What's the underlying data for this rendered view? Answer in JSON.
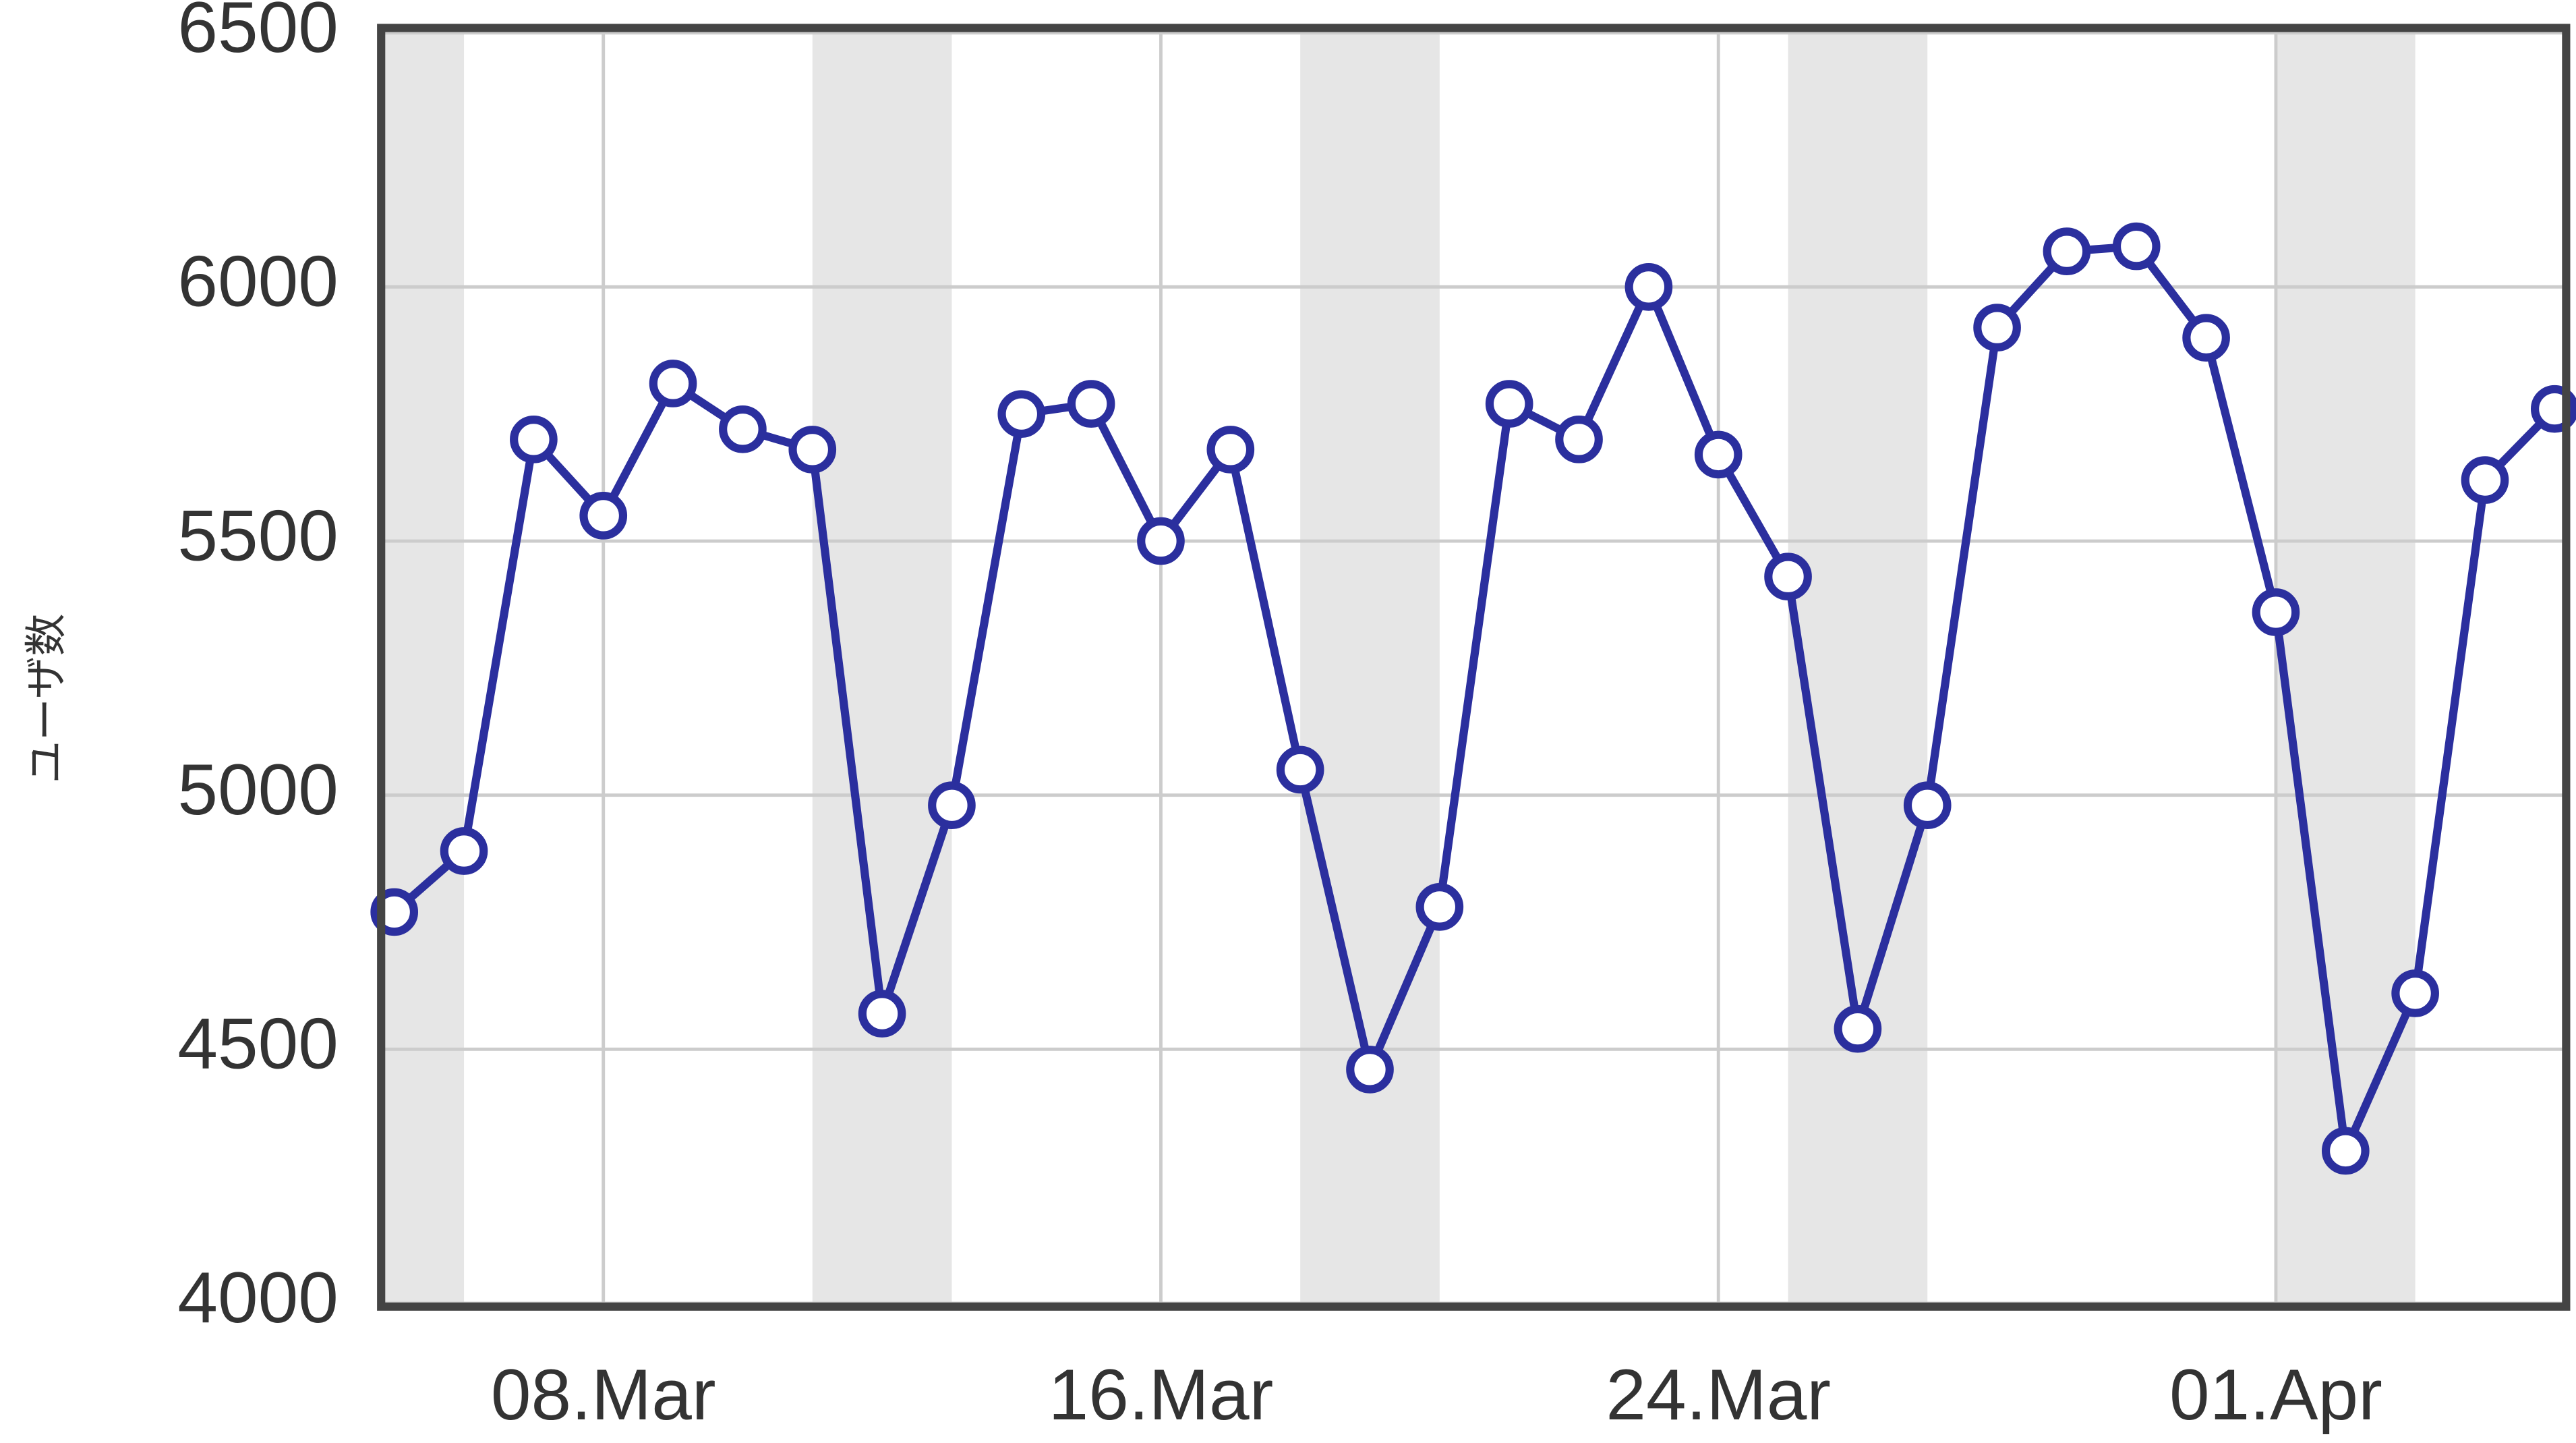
{
  "chart_data": {
    "type": "line",
    "y_axis_label": "ユーザ数",
    "x": [
      "05.Mar",
      "06.Mar",
      "07.Mar",
      "08.Mar",
      "09.Mar",
      "10.Mar",
      "11.Mar",
      "12.Mar",
      "13.Mar",
      "14.Mar",
      "15.Mar",
      "16.Mar",
      "17.Mar",
      "18.Mar",
      "19.Mar",
      "20.Mar",
      "21.Mar",
      "22.Mar",
      "23.Mar",
      "24.Mar",
      "25.Mar",
      "26.Mar",
      "27.Mar",
      "28.Mar",
      "29.Mar",
      "30.Mar",
      "31.Mar",
      "01.Apr",
      "02.Apr",
      "03.Apr",
      "04.Apr",
      "05.Apr"
    ],
    "series": [
      {
        "color": "#2b2f9e",
        "values": [
          4770,
          4890,
          5700,
          5550,
          5810,
          5720,
          5680,
          4570,
          4980,
          5750,
          5770,
          5500,
          5680,
          5050,
          4460,
          4780,
          5770,
          5700,
          6000,
          5670,
          5430,
          4540,
          4980,
          5920,
          6070,
          6080,
          5900,
          5360,
          4300,
          4610,
          5620,
          5760
        ]
      }
    ],
    "xticks": [
      "08.Mar",
      "16.Mar",
      "24.Mar",
      "01.Apr"
    ],
    "ylim": [
      4000,
      6500
    ],
    "yticks": [
      4000,
      4500,
      5000,
      5500,
      6000,
      6500
    ],
    "grid": true,
    "plot_bands": [
      {
        "from": "04.Mar",
        "to": "06.Mar"
      },
      {
        "from": "11.Mar",
        "to": "13.Mar"
      },
      {
        "from": "18.Mar",
        "to": "20.Mar"
      },
      {
        "from": "25.Mar",
        "to": "27.Mar"
      },
      {
        "from": "01.Apr",
        "to": "03.Apr"
      }
    ],
    "band_color": "#e6e6e6"
  }
}
